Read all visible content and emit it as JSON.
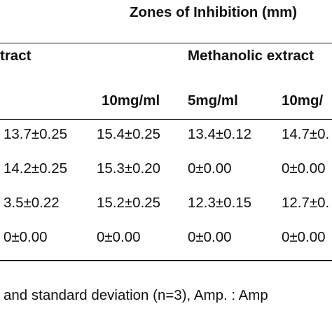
{
  "table": {
    "title": "Zones of Inhibition (mm)",
    "group_headers": [
      "tract",
      "Methanolic extract"
    ],
    "sub_headers": [
      "10mg/ml",
      "5mg/ml",
      "10mg/"
    ],
    "rows": [
      [
        "13.7±0.25",
        "15.4±0.25",
        "13.4±0.12",
        "14.7±0."
      ],
      [
        "14.2±0.25",
        "15.3±0.20",
        "0±0.00",
        "0±0.00"
      ],
      [
        "3.5±0.22",
        "15.2±0.25",
        "12.3±0.15",
        "12.7±0."
      ],
      [
        "0±0.00",
        "0±0.00",
        "0±0.00",
        "0±0.00"
      ]
    ],
    "footnote": "and standard deviation (n=3), Amp. : Amp"
  }
}
